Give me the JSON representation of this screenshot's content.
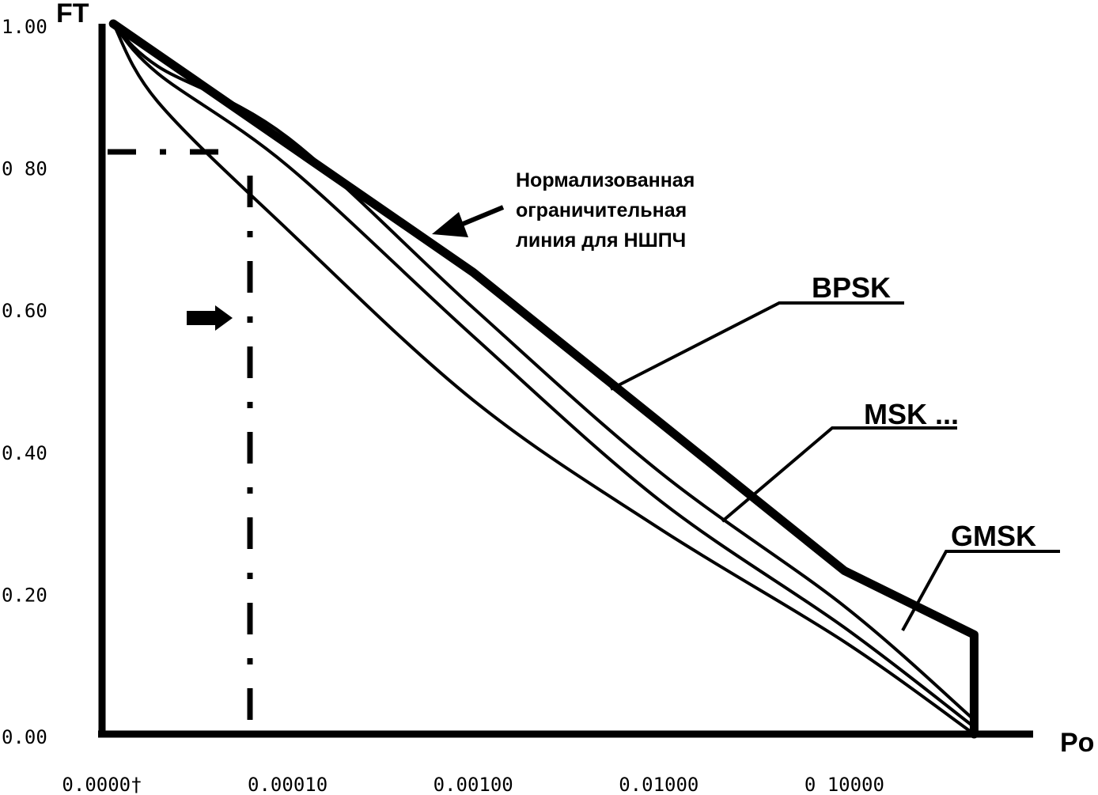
{
  "chart_data": {
    "type": "line",
    "x_scale": "log",
    "xlabel": "Po",
    "ylabel": "FT",
    "xlim": [
      1e-05,
      1
    ],
    "ylim": [
      0,
      1
    ],
    "x_ticks": [
      {
        "value": 1e-05,
        "label": "0.0000†"
      },
      {
        "value": 0.0001,
        "label": "0.00010"
      },
      {
        "value": 0.001,
        "label": "0.00100"
      },
      {
        "value": 0.01,
        "label": "0.01000"
      },
      {
        "value": 0.1,
        "label": "0 10000"
      }
    ],
    "y_ticks": [
      {
        "value": 0,
        "label": "0.00"
      },
      {
        "value": 0.2,
        "label": "0.20"
      },
      {
        "value": 0.4,
        "label": "0.40"
      },
      {
        "value": 0.6,
        "label": "0.60"
      },
      {
        "value": 0.8,
        "label": "0 80"
      },
      {
        "value": 1.0,
        "label": "1.00"
      }
    ],
    "grid": false,
    "series": [
      {
        "name": "Нормализованная ограничительная линия для НШПЧ",
        "style": "thick",
        "x": [
          1.15e-05,
          0.001,
          0.01,
          0.1,
          0.5,
          0.5
        ],
        "y": [
          1.0,
          0.65,
          0.44,
          0.23,
          0.14,
          0.0
        ]
      },
      {
        "name": "BPSK",
        "style": "thin",
        "x": [
          1.15e-05,
          2e-05,
          0.0001,
          0.001,
          0.01,
          0.1,
          0.5
        ],
        "y": [
          1.0,
          0.94,
          0.84,
          0.6,
          0.37,
          0.18,
          0.02
        ]
      },
      {
        "name": "MSK",
        "style": "thin",
        "x": [
          1.15e-05,
          2e-05,
          0.0001,
          0.001,
          0.01,
          0.1,
          0.5
        ],
        "y": [
          1.0,
          0.93,
          0.8,
          0.56,
          0.33,
          0.15,
          0.01
        ]
      },
      {
        "name": "GMSK",
        "style": "thin",
        "x": [
          1.15e-05,
          2e-05,
          0.0001,
          0.001,
          0.01,
          0.1,
          0.5
        ],
        "y": [
          1.0,
          0.89,
          0.71,
          0.47,
          0.29,
          0.13,
          0.0
        ]
      }
    ],
    "annotations": {
      "limit_line_text": [
        "Нормализованная",
        "ограничительная",
        "линия для НШПЧ"
      ],
      "bpsk": "BPSK",
      "msk": "MSK ...",
      "gmsk": "GMSK",
      "reference_x": 5e-05,
      "reference_y": 0.83
    }
  }
}
